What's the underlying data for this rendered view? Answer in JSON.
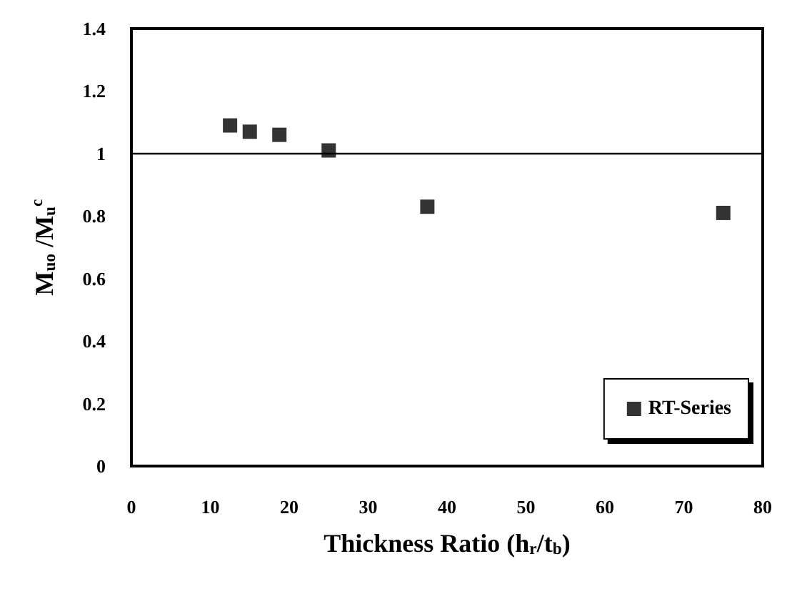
{
  "chart_data": {
    "type": "scatter",
    "xlabel": "Thickness Ratio (h$_{r}$/t$_{b}$)",
    "ylabel": "M$_{uo}$ /M$_{u}$$^{c}$",
    "x": [
      12.5,
      15,
      18.75,
      25,
      37.5,
      75
    ],
    "series": [
      {
        "name": "RT-Series",
        "color": "#000000",
        "values": [
          1.09,
          1.07,
          1.06,
          1.01,
          0.83,
          0.81
        ]
      }
    ],
    "xlim": [
      0,
      80
    ],
    "xticks": [
      0,
      10,
      20,
      30,
      40,
      50,
      60,
      70,
      80
    ],
    "ylim": [
      0,
      1.4
    ],
    "yticks": [
      0,
      0.2,
      0.4,
      0.6,
      0.8,
      1,
      1.2,
      1.4
    ],
    "ref_lines": [
      {
        "axis": "y",
        "value": 1,
        "color": "#000000"
      }
    ],
    "grid": false,
    "legend": "bottom right",
    "marker": "square"
  }
}
